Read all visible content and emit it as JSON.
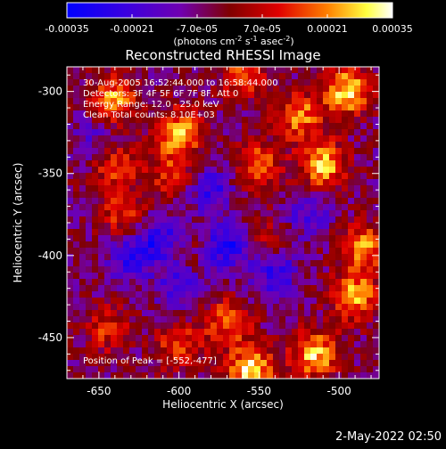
{
  "colorbar": {
    "ticks": [
      "-0.00035",
      "-0.00021",
      "-7.0e-05",
      "7.0e-05",
      "0.00021",
      "0.00035"
    ],
    "unit_prefix": "(photons cm",
    "unit_exp1": "-2",
    "unit_mid1": " s",
    "unit_exp2": "-1",
    "unit_mid2": " asec",
    "unit_exp3": "-2",
    "unit_suffix": ")",
    "vmin": -0.00035,
    "vmax": 0.00035
  },
  "overlay": {
    "time_range": "30-Aug-2005 16:52:44.000 to 16:58:44.000",
    "detectors": "Detectors: 3F 4F 5F 6F 7F 8F, Att 0",
    "energy": "Energy Range: 12.0 - 25.0 keV",
    "clean": "Clean    Total counts: 8.10E+03",
    "peak": "Position of Peak = [-552,-477]"
  },
  "footer": {
    "timestamp": "2-May-2022 02:50"
  },
  "chart_data": {
    "type": "heatmap",
    "title": "Reconstructed RHESSI Image",
    "xlabel": "Heliocentric X (arcsec)",
    "ylabel": "Heliocentric Y (arcsec)",
    "xlim": [
      -670,
      -475
    ],
    "ylim": [
      -475,
      -285
    ],
    "x_ticks": [
      -650,
      -600,
      -550,
      -500
    ],
    "y_ticks": [
      -300,
      -350,
      -400,
      -450
    ],
    "colormap": [
      "#0000ff",
      "#5500cc",
      "#7000aa",
      "#8b0000",
      "#e00000",
      "#ff8000",
      "#ffff60",
      "#ffffff"
    ],
    "grid": false,
    "rows": 50,
    "cols": 50,
    "hotspots": [
      {
        "x": -640,
        "y": -305,
        "v": 0.00028
      },
      {
        "x": -600,
        "y": -325,
        "v": 0.0003
      },
      {
        "x": -640,
        "y": -345,
        "v": 0.00022
      },
      {
        "x": -605,
        "y": -350,
        "v": 0.00018
      },
      {
        "x": -525,
        "y": -315,
        "v": 0.00026
      },
      {
        "x": -495,
        "y": -300,
        "v": 0.00034
      },
      {
        "x": -510,
        "y": -345,
        "v": 0.00032
      },
      {
        "x": -550,
        "y": -345,
        "v": 0.00024
      },
      {
        "x": -485,
        "y": -395,
        "v": 0.00026
      },
      {
        "x": -490,
        "y": -425,
        "v": 0.0003
      },
      {
        "x": -555,
        "y": -470,
        "v": 0.00035
      },
      {
        "x": -515,
        "y": -460,
        "v": 0.00032
      },
      {
        "x": -570,
        "y": -440,
        "v": 0.00024
      },
      {
        "x": -600,
        "y": -455,
        "v": 0.0002
      },
      {
        "x": -635,
        "y": -375,
        "v": 0.00018
      },
      {
        "x": -645,
        "y": -445,
        "v": 0.00016
      },
      {
        "x": -560,
        "y": -290,
        "v": 0.0002
      },
      {
        "x": -545,
        "y": -390,
        "v": 0.00012
      },
      {
        "x": -595,
        "y": -395,
        "v": 8e-05
      }
    ],
    "coldspots": [
      {
        "x": -610,
        "y": -390,
        "v": -0.00022
      },
      {
        "x": -570,
        "y": -395,
        "v": -0.00024
      },
      {
        "x": -630,
        "y": -400,
        "v": -0.0002
      },
      {
        "x": -580,
        "y": -360,
        "v": -0.00018
      },
      {
        "x": -540,
        "y": -410,
        "v": -0.0002
      },
      {
        "x": -600,
        "y": -420,
        "v": -0.00016
      },
      {
        "x": -520,
        "y": -375,
        "v": -0.00014
      },
      {
        "x": -650,
        "y": -330,
        "v": -0.00012
      }
    ]
  }
}
